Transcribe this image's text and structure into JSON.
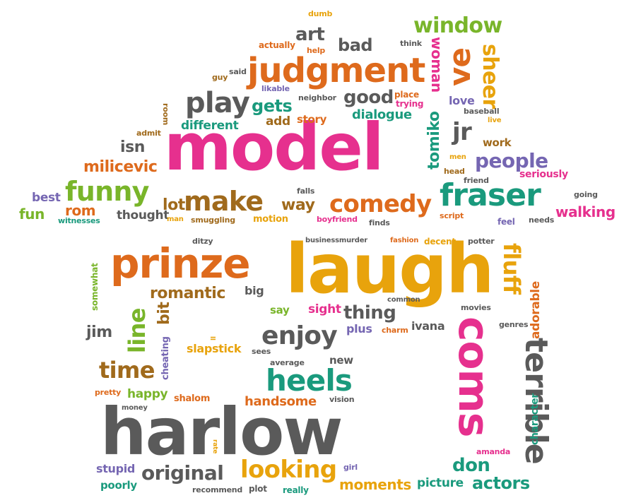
{
  "colors": {
    "pink": "#e6308e",
    "orange": "#de6a1c",
    "gold": "#e8a30c",
    "green": "#79b52a",
    "teal": "#1a9a7d",
    "gray": "#5a5a5a",
    "purple": "#7566b2",
    "brown": "#a06a1c"
  },
  "words": {
    "model": "model",
    "laugh": "laugh",
    "harlow": "harlow",
    "prinze": "prinze",
    "judgment": "judgment",
    "fraser": "fraser",
    "coms": "coms",
    "terrible": "terrible",
    "make": "make",
    "comedy": "comedy",
    "funny": "funny",
    "heels": "heels",
    "looking": "looking",
    "original": "original",
    "enjoy": "enjoy",
    "time": "time",
    "play": "play",
    "window": "window",
    "line": "line",
    "fluff": "fluff",
    "romantic": "romantic",
    "people": "people",
    "jr": "jr",
    "ve": "ve",
    "sheer": "sheer",
    "woman": "woman",
    "art": "art",
    "bad": "bad",
    "good": "good",
    "gets": "gets",
    "milicevic": "milicevic",
    "rom": "rom",
    "lot": "lot",
    "way": "way",
    "thought": "thought",
    "handsome": "handsome",
    "happy": "happy",
    "shalom": "shalom",
    "jim": "jim",
    "bit": "bit",
    "cheating": "cheating",
    "slapstick": "slapstick",
    "thing": "thing",
    "sight": "sight",
    "plus": "plus",
    "ivana": "ivana",
    "actors": "actors",
    "don": "don",
    "moments": "moments",
    "picture": "picture",
    "walking": "walking",
    "adorable": "adorable",
    "character": "character",
    "stupid": "stupid",
    "poorly": "poorly",
    "dialogue": "dialogue",
    "different": "different",
    "isn": "isn",
    "add": "add",
    "story": "story",
    "tomiko": "tomiko",
    "love": "love",
    "baseball": "baseball",
    "work": "work",
    "seriously": "seriously",
    "funtext": "fun",
    "best": "best",
    "witnesses": "witnesses",
    "dumb": "dumb",
    "actually": "actually",
    "help": "help",
    "think": "think",
    "guy": "guy",
    "said": "said",
    "likable": "likable",
    "neighbor": "neighbor",
    "place": "place",
    "trying": "trying",
    "live": "live",
    "room": "room",
    "admit": "admit",
    "men": "men",
    "head": "head",
    "friend": "friend",
    "going": "going",
    "falls": "falls",
    "boyfriend": "boyfriend",
    "script": "script",
    "feel": "feel",
    "needs": "needs",
    "finds": "finds",
    "motion": "motion",
    "smuggling": "smuggling",
    "man": "man",
    "businessmurder": "businessmurder",
    "fashion": "fashion",
    "decent": "decent",
    "potter": "potter",
    "somewhat": "somewhat",
    "ditzy": "ditzy",
    "big": "big",
    "say": "say",
    "common": "common",
    "movies": "movies",
    "genres": "genres",
    "charm": "charm",
    "sees": "sees",
    "ll": "ll",
    "average": "average",
    "new": "new",
    "pretty": "pretty",
    "money": "money",
    "vision": "vision",
    "amanda": "amanda",
    "rate": "rate",
    "girl": "girl",
    "recommend": "recommend",
    "plot": "plot",
    "really": "really"
  }
}
